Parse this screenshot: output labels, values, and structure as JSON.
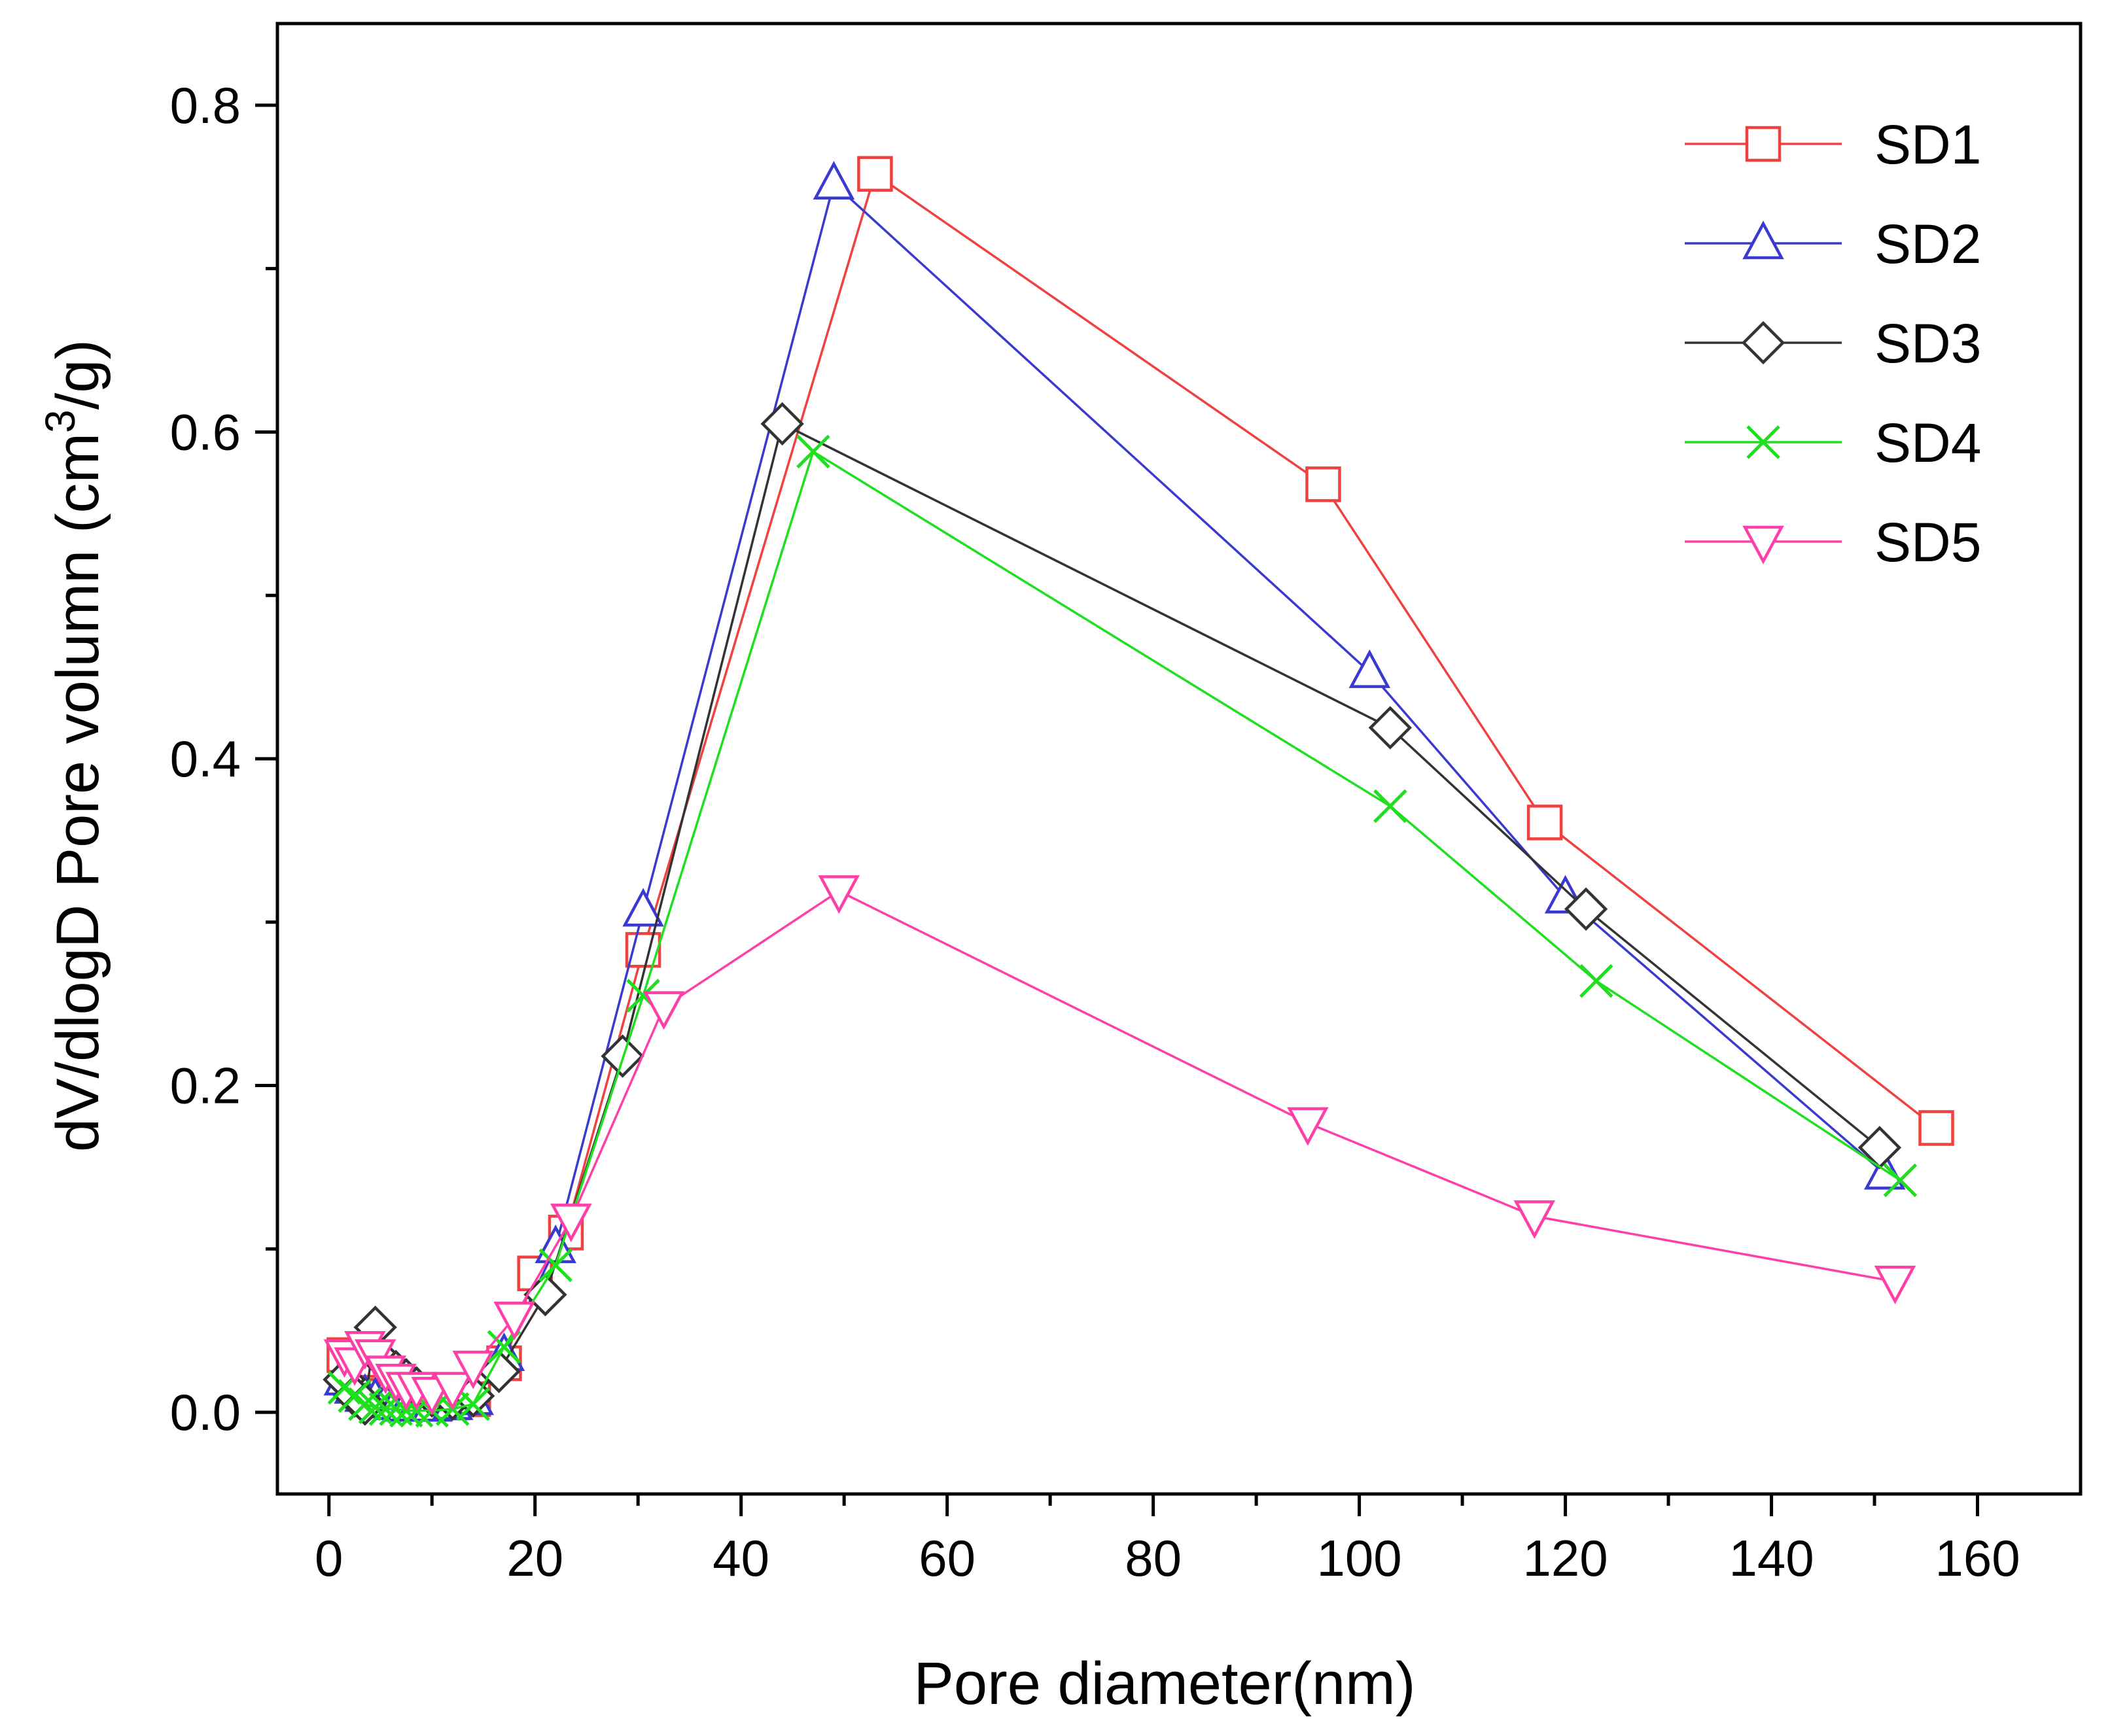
{
  "chart_data": {
    "type": "line",
    "title": "",
    "xlabel": "Pore diameter(nm)",
    "ylabel_main": "dV/dlogD Pore volumn (cm",
    "ylabel_sup": "3",
    "ylabel_tail": "/g)",
    "xlim": [
      -5,
      170
    ],
    "ylim": [
      -0.05,
      0.85
    ],
    "xticks": [
      0,
      20,
      40,
      60,
      80,
      100,
      120,
      140,
      160
    ],
    "xtick_labels": [
      "0",
      "20",
      "40",
      "60",
      "80",
      "100",
      "120",
      "140",
      "160"
    ],
    "yticks": [
      0.0,
      0.2,
      0.4,
      0.6,
      0.8
    ],
    "ytick_labels": [
      "0.0",
      "0.2",
      "0.4",
      "0.6",
      "0.8"
    ],
    "legend_position": "top-right",
    "series": [
      {
        "name": "SD1",
        "color": "#f04040",
        "marker": "square",
        "x": [
          1.5,
          2.5,
          3.5,
          4.5,
          5.5,
          6.5,
          7.5,
          8.5,
          10,
          12,
          14,
          17,
          20,
          23,
          30.5,
          53,
          96.5,
          118,
          156
        ],
        "y": [
          0.035,
          0.03,
          0.02,
          0.012,
          0.01,
          0.01,
          0.008,
          0.007,
          0.006,
          0.006,
          0.008,
          0.03,
          0.085,
          0.11,
          0.283,
          0.758,
          0.568,
          0.361,
          0.174
        ]
      },
      {
        "name": "SD2",
        "color": "#3a3ad0",
        "marker": "triangle-up",
        "x": [
          1.5,
          2.5,
          3.5,
          4.5,
          5.5,
          6.5,
          7.5,
          8.5,
          10,
          12,
          14,
          17,
          22,
          30.5,
          49,
          101,
          120,
          151
        ],
        "y": [
          0.02,
          0.015,
          0.01,
          0.008,
          0.006,
          0.005,
          0.004,
          0.004,
          0.004,
          0.005,
          0.008,
          0.035,
          0.101,
          0.307,
          0.752,
          0.453,
          0.315,
          0.146
        ]
      },
      {
        "name": "SD3",
        "color": "#333333",
        "marker": "diamond",
        "x": [
          1.5,
          2.5,
          3.5,
          4.5,
          5.5,
          6.5,
          7.5,
          8.5,
          10,
          12,
          14,
          16.5,
          21,
          28.5,
          44,
          103,
          122,
          150.5
        ],
        "y": [
          0.02,
          0.01,
          0.005,
          0.052,
          0.03,
          0.025,
          0.02,
          0.015,
          0.01,
          0.008,
          0.01,
          0.025,
          0.072,
          0.218,
          0.605,
          0.419,
          0.308,
          0.162
        ]
      },
      {
        "name": "SD4",
        "color": "#1ee01e",
        "marker": "x",
        "x": [
          1.5,
          2.5,
          3.5,
          4.5,
          5.5,
          6.5,
          7.5,
          8.5,
          10,
          12,
          14,
          17,
          22,
          30.5,
          47,
          103,
          123,
          152.5
        ],
        "y": [
          0.015,
          0.01,
          0.005,
          0.003,
          0.002,
          0.002,
          0.001,
          0.001,
          0.001,
          0.002,
          0.005,
          0.04,
          0.09,
          0.255,
          0.588,
          0.371,
          0.264,
          0.142
        ]
      },
      {
        "name": "SD5",
        "color": "#ff3fa8",
        "marker": "triangle-down",
        "x": [
          1.5,
          2.5,
          3.5,
          4.5,
          5.5,
          6.5,
          7.5,
          8.5,
          10,
          12,
          14,
          18,
          23.5,
          32.5,
          49.5,
          95,
          117,
          152
        ],
        "y": [
          0.035,
          0.03,
          0.04,
          0.035,
          0.025,
          0.02,
          0.015,
          0.015,
          0.012,
          0.015,
          0.028,
          0.058,
          0.118,
          0.248,
          0.319,
          0.177,
          0.12,
          0.08
        ]
      }
    ]
  }
}
